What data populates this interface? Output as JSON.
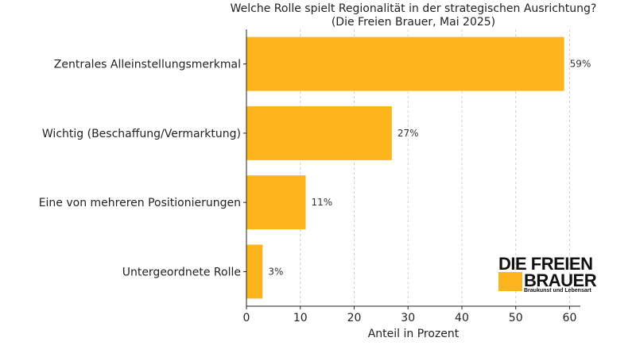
{
  "chart_data": {
    "type": "bar",
    "orientation": "horizontal",
    "title": "Welche Rolle spielt Regionalität in der strategischen Ausrichtung?",
    "subtitle": "(Die Freien Brauer, Mai 2025)",
    "categories": [
      "Zentrales Alleinstellungsmerkmal",
      "Wichtig (Beschaffung/Vermarktung)",
      "Eine von mehreren Positionierungen",
      "Untergeordnete Rolle"
    ],
    "values": [
      59,
      27,
      11,
      3
    ],
    "value_labels": [
      "59%",
      "27%",
      "11%",
      "3%"
    ],
    "xlabel": "Anteil in Prozent",
    "ylabel": "",
    "xlim": [
      0,
      62
    ],
    "xticks": [
      0,
      10,
      20,
      30,
      40,
      50,
      60
    ],
    "grid": true,
    "bar_color": "#FDB51E"
  },
  "logo": {
    "line1": "DIE FREIEN",
    "line2": "BRAUER",
    "tagline": "Braukunst und Lebensart",
    "accent_color": "#FDB51E"
  }
}
